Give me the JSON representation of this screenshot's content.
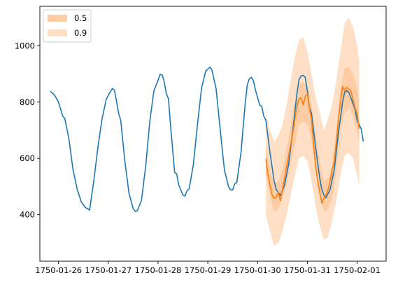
{
  "chart_data": {
    "type": "line",
    "x_axis": {
      "type": "date",
      "range": [
        "1750-01-25T15:00",
        "1750-02-01T14:00"
      ],
      "ticks": [
        "1750-01-26",
        "1750-01-27",
        "1750-01-28",
        "1750-01-29",
        "1750-01-30",
        "1750-01-31",
        "1750-02-01"
      ]
    },
    "y_axis": {
      "range": [
        235,
        1140
      ],
      "ticks": [
        400,
        600,
        800,
        1000
      ]
    },
    "grid": false,
    "legend": {
      "placement": "top-left",
      "entries": [
        {
          "label": "0.5",
          "color": "#ffcca3"
        },
        {
          "label": "0.9",
          "color": "#ffe0c7"
        }
      ]
    },
    "series": [
      {
        "role": "observed",
        "color": "#1f77b4",
        "points": [
          [
            "1750-01-25T20:00",
            838
          ],
          [
            "1750-01-25T22:00",
            826
          ],
          [
            "1750-01-26T00:00",
            800
          ],
          [
            "1750-01-26T02:00",
            750
          ],
          [
            "1750-01-26T03:00",
            742
          ],
          [
            "1750-01-26T05:00",
            670
          ],
          [
            "1750-01-26T07:00",
            560
          ],
          [
            "1750-01-26T09:00",
            490
          ],
          [
            "1750-01-26T11:00",
            445
          ],
          [
            "1750-01-26T13:00",
            425
          ],
          [
            "1750-01-26T14:00",
            422
          ],
          [
            "1750-01-26T15:00",
            416
          ],
          [
            "1750-01-26T17:00",
            520
          ],
          [
            "1750-01-26T19:00",
            640
          ],
          [
            "1750-01-26T21:00",
            740
          ],
          [
            "1750-01-26T23:00",
            810
          ],
          [
            "1750-01-27T01:00",
            838
          ],
          [
            "1750-01-27T02:00",
            848
          ],
          [
            "1750-01-27T03:00",
            842
          ],
          [
            "1750-01-27T05:00",
            760
          ],
          [
            "1750-01-27T06:00",
            735
          ],
          [
            "1750-01-27T08:00",
            590
          ],
          [
            "1750-01-27T10:00",
            475
          ],
          [
            "1750-01-27T12:00",
            422
          ],
          [
            "1750-01-27T13:00",
            412
          ],
          [
            "1750-01-27T14:00",
            414
          ],
          [
            "1750-01-27T16:00",
            450
          ],
          [
            "1750-01-27T18:00",
            570
          ],
          [
            "1750-01-27T20:00",
            730
          ],
          [
            "1750-01-27T22:00",
            840
          ],
          [
            "1750-01-28T00:00",
            878
          ],
          [
            "1750-01-28T01:00",
            898
          ],
          [
            "1750-01-28T02:00",
            896
          ],
          [
            "1750-01-28T03:00",
            872
          ],
          [
            "1750-01-28T04:00",
            830
          ],
          [
            "1750-01-28T05:00",
            812
          ],
          [
            "1750-01-28T06:00",
            720
          ],
          [
            "1750-01-28T08:00",
            550
          ],
          [
            "1750-01-28T09:00",
            545
          ],
          [
            "1750-01-28T10:00",
            505
          ],
          [
            "1750-01-28T12:00",
            470
          ],
          [
            "1750-01-28T13:00",
            466
          ],
          [
            "1750-01-28T14:00",
            485
          ],
          [
            "1750-01-28T15:00",
            492
          ],
          [
            "1750-01-28T17:00",
            575
          ],
          [
            "1750-01-28T19:00",
            720
          ],
          [
            "1750-01-28T21:00",
            850
          ],
          [
            "1750-01-28T23:00",
            910
          ],
          [
            "1750-01-29T01:00",
            924
          ],
          [
            "1750-01-29T02:00",
            914
          ],
          [
            "1750-01-29T03:00",
            880
          ],
          [
            "1750-01-29T04:00",
            848
          ],
          [
            "1750-01-29T06:00",
            700
          ],
          [
            "1750-01-29T08:00",
            560
          ],
          [
            "1750-01-29T10:00",
            500
          ],
          [
            "1750-01-29T11:00",
            488
          ],
          [
            "1750-01-29T12:00",
            488
          ],
          [
            "1750-01-29T13:00",
            510
          ],
          [
            "1750-01-29T14:00",
            515
          ],
          [
            "1750-01-29T16:00",
            620
          ],
          [
            "1750-01-29T18:00",
            790
          ],
          [
            "1750-01-29T19:00",
            860
          ],
          [
            "1750-01-29T20:00",
            882
          ],
          [
            "1750-01-29T21:00",
            888
          ],
          [
            "1750-01-29T22:00",
            876
          ],
          [
            "1750-01-29T23:00",
            842
          ],
          [
            "1750-01-30T01:00",
            790
          ],
          [
            "1750-01-30T02:00",
            785
          ],
          [
            "1750-01-30T03:00",
            750
          ],
          [
            "1750-01-30T04:00",
            735
          ],
          [
            "1750-01-30T06:00",
            620
          ],
          [
            "1750-01-30T08:00",
            520
          ],
          [
            "1750-01-30T09:00",
            490
          ],
          [
            "1750-01-30T11:00",
            468
          ],
          [
            "1750-01-30T13:00",
            505
          ],
          [
            "1750-01-30T15:00",
            580
          ],
          [
            "1750-01-30T17:00",
            700
          ],
          [
            "1750-01-30T19:00",
            830
          ],
          [
            "1750-01-30T20:00",
            880
          ],
          [
            "1750-01-30T21:00",
            893
          ],
          [
            "1750-01-30T22:00",
            895
          ],
          [
            "1750-01-30T23:00",
            888
          ],
          [
            "1750-01-31T00:00",
            840
          ],
          [
            "1750-01-31T01:00",
            782
          ],
          [
            "1750-01-31T02:00",
            760
          ],
          [
            "1750-01-31T04:00",
            640
          ],
          [
            "1750-01-31T06:00",
            530
          ],
          [
            "1750-01-31T07:00",
            490
          ],
          [
            "1750-01-31T08:00",
            470
          ],
          [
            "1750-01-31T09:00",
            460
          ],
          [
            "1750-01-31T11:00",
            490
          ],
          [
            "1750-01-31T13:00",
            560
          ],
          [
            "1750-01-31T15:00",
            690
          ],
          [
            "1750-01-31T17:00",
            800
          ],
          [
            "1750-01-31T18:00",
            835
          ],
          [
            "1750-01-31T19:00",
            840
          ],
          [
            "1750-01-31T20:00",
            835
          ],
          [
            "1750-01-31T21:00",
            815
          ],
          [
            "1750-01-31T23:00",
            775
          ],
          [
            "1750-02-01T00:00",
            735
          ],
          [
            "1750-02-01T02:00",
            705
          ],
          [
            "1750-02-01T03:00",
            660
          ]
        ]
      },
      {
        "role": "forecast median",
        "color": "#ff7f0e",
        "points": [
          [
            "1750-01-30T04:00",
            598
          ],
          [
            "1750-01-30T05:00",
            545
          ],
          [
            "1750-01-30T06:00",
            505
          ],
          [
            "1750-01-30T07:00",
            470
          ],
          [
            "1750-01-30T08:00",
            458
          ],
          [
            "1750-01-30T09:00",
            462
          ],
          [
            "1750-01-30T10:00",
            478
          ],
          [
            "1750-01-30T11:00",
            450
          ],
          [
            "1750-01-30T12:00",
            490
          ],
          [
            "1750-01-30T13:00",
            530
          ],
          [
            "1750-01-30T14:00",
            570
          ],
          [
            "1750-01-30T15:00",
            610
          ],
          [
            "1750-01-30T16:00",
            650
          ],
          [
            "1750-01-30T17:00",
            690
          ],
          [
            "1750-01-30T18:00",
            740
          ],
          [
            "1750-01-30T19:00",
            785
          ],
          [
            "1750-01-30T20:00",
            810
          ],
          [
            "1750-01-30T21:00",
            815
          ],
          [
            "1750-01-30T22:00",
            790
          ],
          [
            "1750-01-30T23:00",
            820
          ],
          [
            "1750-01-31T00:00",
            830
          ],
          [
            "1750-01-31T01:00",
            780
          ],
          [
            "1750-01-31T02:00",
            740
          ],
          [
            "1750-01-31T03:00",
            650
          ],
          [
            "1750-01-31T04:00",
            570
          ],
          [
            "1750-01-31T05:00",
            520
          ],
          [
            "1750-01-31T06:00",
            480
          ],
          [
            "1750-01-31T07:00",
            440
          ],
          [
            "1750-01-31T08:00",
            460
          ],
          [
            "1750-01-31T09:00",
            470
          ],
          [
            "1750-01-31T10:00",
            490
          ],
          [
            "1750-01-31T11:00",
            520
          ],
          [
            "1750-01-31T12:00",
            560
          ],
          [
            "1750-01-31T13:00",
            590
          ],
          [
            "1750-01-31T14:00",
            660
          ],
          [
            "1750-01-31T15:00",
            740
          ],
          [
            "1750-01-31T16:00",
            800
          ],
          [
            "1750-01-31T17:00",
            855
          ],
          [
            "1750-01-31T18:00",
            840
          ],
          [
            "1750-01-31T19:00",
            852
          ],
          [
            "1750-01-31T20:00",
            845
          ],
          [
            "1750-01-31T21:00",
            840
          ],
          [
            "1750-01-31T22:00",
            810
          ],
          [
            "1750-01-31T23:00",
            780
          ],
          [
            "1750-02-01T00:00",
            760
          ],
          [
            "1750-02-01T01:00",
            705
          ]
        ]
      }
    ],
    "bands": [
      {
        "label": "0.9",
        "color": "#ffe0c7",
        "x": [
          "1750-01-30T04:00",
          "1750-01-30T06:00",
          "1750-01-30T08:00",
          "1750-01-30T10:00",
          "1750-01-30T12:00",
          "1750-01-30T14:00",
          "1750-01-30T16:00",
          "1750-01-30T18:00",
          "1750-01-30T20:00",
          "1750-01-30T22:00",
          "1750-01-31T00:00",
          "1750-01-31T02:00",
          "1750-01-31T04:00",
          "1750-01-31T06:00",
          "1750-01-31T08:00",
          "1750-01-31T10:00",
          "1750-01-31T12:00",
          "1750-01-31T14:00",
          "1750-01-31T16:00",
          "1750-01-31T18:00",
          "1750-01-31T20:00",
          "1750-01-31T22:00",
          "1750-02-01T00:00",
          "1750-02-01T01:00"
        ],
        "upper": [
          760,
          700,
          660,
          680,
          720,
          790,
          880,
          960,
          1020,
          1030,
          980,
          900,
          820,
          760,
          700,
          740,
          790,
          880,
          980,
          1080,
          1100,
          1070,
          1000,
          940
        ],
        "lower": [
          400,
          340,
          290,
          300,
          340,
          400,
          470,
          540,
          600,
          610,
          590,
          520,
          430,
          360,
          310,
          320,
          380,
          450,
          540,
          610,
          620,
          600,
          540,
          500
        ]
      },
      {
        "label": "0.5",
        "color": "#ffcca3",
        "x": [
          "1750-01-30T04:00",
          "1750-01-30T06:00",
          "1750-01-30T08:00",
          "1750-01-30T10:00",
          "1750-01-30T12:00",
          "1750-01-30T14:00",
          "1750-01-30T16:00",
          "1750-01-30T18:00",
          "1750-01-30T20:00",
          "1750-01-30T22:00",
          "1750-01-31T00:00",
          "1750-01-31T02:00",
          "1750-01-31T04:00",
          "1750-01-31T06:00",
          "1750-01-31T08:00",
          "1750-01-31T10:00",
          "1750-01-31T12:00",
          "1750-01-31T14:00",
          "1750-01-31T16:00",
          "1750-01-31T18:00",
          "1750-01-31T20:00",
          "1750-01-31T22:00",
          "1750-02-01T00:00",
          "1750-02-01T01:00"
        ],
        "upper": [
          650,
          560,
          510,
          520,
          560,
          630,
          720,
          800,
          860,
          870,
          860,
          790,
          690,
          590,
          520,
          530,
          580,
          700,
          850,
          920,
          925,
          900,
          850,
          800
        ],
        "lower": [
          540,
          470,
          410,
          420,
          460,
          510,
          580,
          650,
          720,
          730,
          720,
          660,
          560,
          470,
          410,
          420,
          460,
          560,
          700,
          760,
          780,
          750,
          700,
          650
        ]
      }
    ]
  }
}
